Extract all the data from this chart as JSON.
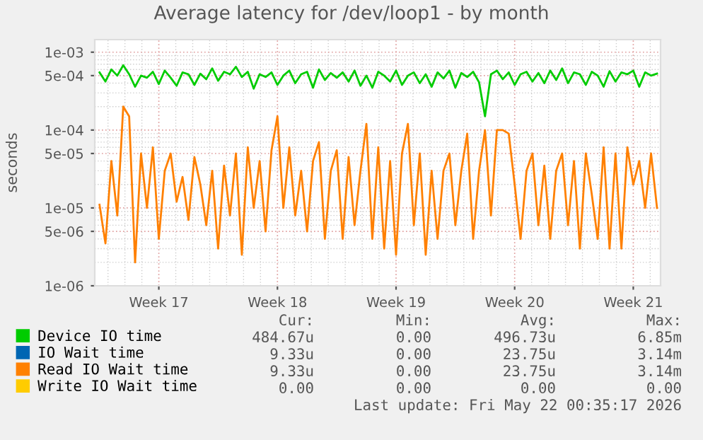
{
  "chart_data": {
    "type": "line",
    "title": "Average latency for /dev/loop1 - by month",
    "ylabel": "seconds",
    "log": "y",
    "grid": true,
    "legend": "bottom",
    "marker": "none",
    "line_style": "solid",
    "categories": [
      null,
      null,
      null,
      null,
      null,
      null,
      null,
      null,
      null,
      null,
      "Week 17",
      null,
      null,
      null,
      null,
      null,
      null,
      null,
      null,
      null,
      null,
      null,
      null,
      null,
      null,
      null,
      null,
      null,
      null,
      null,
      "Week 18",
      null,
      null,
      null,
      null,
      null,
      null,
      null,
      null,
      null,
      null,
      null,
      null,
      null,
      null,
      null,
      null,
      null,
      null,
      null,
      "Week 19",
      null,
      null,
      null,
      null,
      null,
      null,
      null,
      null,
      null,
      null,
      null,
      null,
      null,
      null,
      null,
      null,
      null,
      null,
      null,
      "Week 20",
      null,
      null,
      null,
      null,
      null,
      null,
      null,
      null,
      null,
      null,
      null,
      null,
      null,
      null,
      null,
      null,
      null,
      null,
      null,
      "Week 21",
      null,
      null,
      null,
      null
    ],
    "ylim": [
      1e-06,
      0.00145
    ],
    "yticks": [
      {
        "value": 1e-06,
        "label": "1e-06"
      },
      {
        "value": 5e-06,
        "label": "5e-06"
      },
      {
        "value": 1e-05,
        "label": "1e-05"
      },
      {
        "value": 5e-05,
        "label": "5e-05"
      },
      {
        "value": 0.0001,
        "label": "1e-04"
      },
      {
        "value": 0.0005,
        "label": "5e-04"
      },
      {
        "value": 0.001,
        "label": "1e-03"
      }
    ],
    "series": [
      {
        "name": "Device IO time",
        "color": "#00cc00",
        "values": [
          0.00055,
          0.00042,
          0.0006,
          0.0005,
          0.00068,
          0.00052,
          0.00036,
          0.0005,
          0.00047,
          0.00056,
          0.00039,
          0.00058,
          0.00047,
          0.00037,
          0.00055,
          0.00052,
          0.00038,
          0.00053,
          0.00045,
          0.00062,
          0.00043,
          0.00056,
          0.00052,
          0.00065,
          0.00048,
          0.00056,
          0.00034,
          0.00052,
          0.00048,
          0.00055,
          0.00038,
          0.0005,
          0.00058,
          0.0004,
          0.00052,
          0.00056,
          0.00035,
          0.0006,
          0.00044,
          0.00054,
          0.00047,
          0.00055,
          0.00042,
          0.00058,
          0.00037,
          0.0005,
          0.00035,
          0.00056,
          0.0005,
          0.00042,
          0.00058,
          0.00038,
          0.0005,
          0.00055,
          0.0004,
          0.00052,
          0.00036,
          0.00055,
          0.00046,
          0.00058,
          0.00035,
          0.00054,
          0.00048,
          0.00056,
          0.00041,
          0.00015,
          0.00052,
          0.00058,
          0.00045,
          0.00055,
          0.00038,
          0.00052,
          0.00056,
          0.00042,
          0.00054,
          0.0004,
          0.00058,
          0.00044,
          0.00062,
          0.0004,
          0.00055,
          0.00052,
          0.00038,
          0.00056,
          0.0005,
          0.00036,
          0.00057,
          0.00042,
          0.00055,
          0.00052,
          0.00058,
          0.00036,
          0.00055,
          0.0005,
          0.00053
        ]
      },
      {
        "name": "IO Wait time",
        "color": "#0066b3",
        "values": [
          null,
          null,
          null,
          null,
          null,
          null,
          null,
          null,
          null,
          null,
          null,
          null,
          null,
          null,
          null,
          null,
          null,
          null,
          null,
          null,
          null,
          null,
          null,
          null,
          null,
          null,
          null,
          null,
          null,
          null,
          null,
          null,
          null,
          null,
          null,
          null,
          null,
          null,
          null,
          null,
          null,
          null,
          null,
          null,
          null,
          null,
          null,
          null,
          null,
          null,
          null,
          null,
          null,
          null,
          null,
          null,
          null,
          null,
          null,
          null,
          null,
          null,
          null,
          null,
          null,
          null,
          null,
          null,
          null,
          null,
          null,
          null,
          null,
          null,
          null,
          null,
          null,
          null,
          null,
          null,
          null,
          null,
          null,
          null,
          null,
          null,
          null,
          null,
          null,
          null,
          null,
          null,
          null,
          null,
          null
        ]
      },
      {
        "name": "Read IO Wait time",
        "color": "#ff8000",
        "values": [
          1.1e-05,
          3.5e-06,
          4e-05,
          8e-06,
          0.0002,
          0.00015,
          2e-06,
          5e-05,
          1e-05,
          6e-05,
          4e-06,
          3e-05,
          5e-05,
          1.2e-05,
          2.5e-05,
          7e-06,
          4.5e-05,
          2e-05,
          6e-06,
          3e-05,
          3e-06,
          3.5e-05,
          8e-06,
          5e-05,
          2.5e-06,
          6e-05,
          1e-05,
          4e-05,
          5e-06,
          5.5e-05,
          0.00015,
          1e-05,
          6e-05,
          8e-06,
          3e-05,
          5e-06,
          4e-05,
          7e-05,
          4e-06,
          3e-05,
          5.5e-05,
          4e-06,
          4.5e-05,
          6e-06,
          3e-05,
          0.00012,
          4e-06,
          6e-05,
          3e-06,
          4e-05,
          2.5e-06,
          5e-05,
          0.00012,
          6e-06,
          5e-05,
          2.5e-06,
          3e-05,
          4e-06,
          3e-05,
          5e-05,
          6e-06,
          3e-05,
          9e-05,
          4e-06,
          3e-05,
          0.0001,
          8e-06,
          0.0001,
          0.0001,
          9e-05,
          2e-05,
          4e-06,
          3e-05,
          5e-05,
          6e-06,
          3.5e-05,
          4e-06,
          3e-05,
          5e-05,
          6e-06,
          4e-05,
          3e-06,
          5e-05,
          1.5e-05,
          4e-06,
          6e-05,
          3e-06,
          5e-05,
          3e-06,
          6e-05,
          2e-05,
          4e-05,
          1e-05,
          5e-05,
          1e-05
        ]
      },
      {
        "name": "Write IO Wait time",
        "color": "#ffcc00",
        "values": [
          null,
          null,
          null,
          null,
          null,
          null,
          null,
          null,
          null,
          null,
          null,
          null,
          null,
          null,
          null,
          null,
          null,
          null,
          null,
          null,
          null,
          null,
          null,
          null,
          null,
          null,
          null,
          null,
          null,
          null,
          null,
          null,
          null,
          null,
          null,
          null,
          null,
          null,
          null,
          null,
          null,
          null,
          null,
          null,
          null,
          null,
          null,
          null,
          null,
          null,
          null,
          null,
          null,
          null,
          null,
          null,
          null,
          null,
          null,
          null,
          null,
          null,
          null,
          null,
          null,
          null,
          null,
          null,
          null,
          null,
          null,
          null,
          null,
          null,
          null,
          null,
          null,
          null,
          null,
          null,
          null,
          null,
          null,
          null,
          null,
          null,
          null,
          null,
          null,
          null,
          null,
          null,
          null,
          null,
          null
        ]
      }
    ],
    "annotations": [
      "Cur:",
      "Min:",
      "Avg:",
      "Max:",
      "484.67u",
      "0.00",
      "496.73u",
      "6.85m",
      "9.33u",
      "0.00",
      "23.75u",
      "3.14m",
      "9.33u",
      "0.00",
      "23.75u",
      "3.14m",
      "0.00",
      "0.00",
      "0.00",
      "0.00",
      "Last update: Fri May 22 00:35:17 2026"
    ]
  }
}
